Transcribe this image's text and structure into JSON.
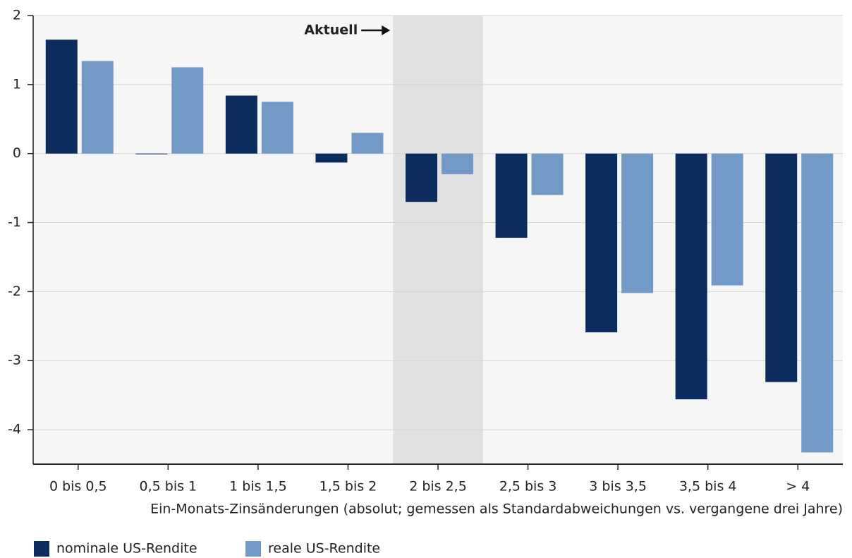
{
  "chart_data": {
    "type": "bar",
    "categories": [
      "0 bis 0,5",
      "0,5 bis 1",
      "1 bis 1,5",
      "1,5 bis 2",
      "2 bis 2,5",
      "2,5 bis 3",
      "3 bis 3,5",
      "3,5 bis 4",
      "> 4"
    ],
    "series": [
      {
        "name": "nominale US-Rendite",
        "color": "#0c2c5e",
        "values": [
          1.65,
          -0.01,
          0.84,
          -0.13,
          -0.7,
          -1.22,
          -2.59,
          -3.56,
          -3.31
        ]
      },
      {
        "name": "reale US-Rendite",
        "color": "#7399c6",
        "values": [
          1.34,
          1.25,
          0.75,
          0.3,
          -0.3,
          -0.6,
          -2.02,
          -1.91,
          -4.33
        ]
      }
    ],
    "xlabel": "Ein-Monats-Zinsänderungen (absolut; gemessen als Standardabweichungen vs. vergangene drei Jahre)",
    "annotation": "Aktuell",
    "highlight_index": 4,
    "ylim": [
      -4.5,
      2
    ],
    "yticks": [
      -4,
      -3,
      -2,
      -1,
      0,
      1,
      2
    ],
    "grid": true
  }
}
